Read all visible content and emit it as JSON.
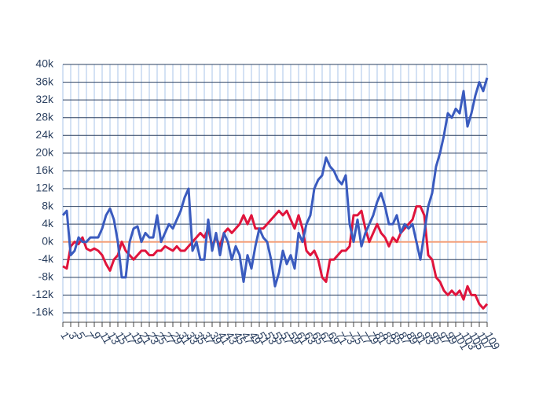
{
  "chart_data": {
    "type": "line",
    "x": [
      1,
      2,
      3,
      4,
      5,
      6,
      7,
      8,
      9,
      10,
      11,
      12,
      13,
      14,
      15,
      16,
      17,
      18,
      19,
      20,
      21,
      22,
      23,
      24,
      25,
      26,
      27,
      28,
      29,
      30,
      31,
      32,
      33,
      34,
      35,
      36,
      37,
      38,
      39,
      40,
      41,
      42,
      43,
      44,
      45,
      46,
      47,
      48,
      49,
      50,
      51,
      52,
      53,
      54,
      55,
      56,
      57,
      58,
      59,
      60,
      61,
      62,
      63,
      64,
      65,
      66,
      67,
      68,
      69,
      70,
      71,
      72,
      73,
      74,
      75,
      76,
      77,
      78,
      79,
      80,
      81,
      82,
      83,
      84,
      85,
      86,
      87,
      88,
      89,
      90,
      91,
      92,
      93,
      94,
      95,
      96,
      97,
      98,
      99,
      100,
      101,
      102,
      103,
      104,
      105,
      106,
      107,
      108,
      109
    ],
    "series": [
      {
        "color": "#e0143c",
        "values": [
          -5.5,
          -6,
          -1,
          0,
          -0.5,
          1,
          -1.5,
          -2,
          -1.5,
          -2,
          -3,
          -5,
          -6.5,
          -4,
          -3,
          0,
          -2,
          -3,
          -4,
          -3,
          -2,
          -2,
          -3,
          -3,
          -2,
          -2,
          -1,
          -1.5,
          -2,
          -1,
          -2,
          -2,
          -1,
          0,
          1,
          2,
          1,
          3,
          -1,
          1,
          -1,
          2,
          3,
          2,
          3,
          4,
          6,
          4,
          6,
          3,
          3,
          3,
          4,
          5,
          6,
          7,
          6,
          7,
          5,
          3,
          6,
          3,
          -2,
          -3,
          -2,
          -4,
          -8,
          -9,
          -4,
          -4,
          -3,
          -2,
          -2,
          -1,
          6,
          6,
          7,
          3,
          0,
          2,
          4,
          2,
          1,
          -1,
          1,
          0,
          2,
          3,
          4,
          5,
          8,
          8,
          6,
          -3,
          -4,
          -8,
          -9,
          -11,
          -12,
          -11,
          -12,
          -11,
          -13,
          -10,
          -12,
          -12,
          -14,
          -15,
          -14
        ]
      },
      {
        "color": "#3a5bbf",
        "values": [
          6,
          7,
          -3,
          -2,
          1,
          0,
          0,
          1,
          1,
          1,
          3,
          6,
          7.5,
          5,
          0,
          -8,
          -8,
          0,
          3,
          3.5,
          0,
          2,
          1,
          1,
          6,
          0,
          2,
          4,
          3,
          5,
          7,
          10,
          12,
          -2,
          0,
          -4,
          -4,
          5,
          -2,
          2,
          -3,
          2,
          0,
          -4,
          -1,
          -3,
          -9,
          -3,
          -6,
          -1,
          3,
          1,
          0,
          -4,
          -10,
          -7,
          -2,
          -5,
          -3,
          -6,
          2,
          0,
          4,
          6,
          12,
          14,
          15,
          19,
          17,
          16,
          14,
          13,
          15,
          4,
          0,
          5,
          -1,
          2,
          4,
          6,
          9,
          11,
          8,
          4,
          4,
          6,
          2,
          4,
          3,
          4,
          0,
          -4,
          2,
          8,
          11,
          17,
          20,
          24,
          29,
          28,
          30,
          29,
          34,
          26,
          29,
          33,
          36,
          34,
          37
        ]
      }
    ],
    "xlim": [
      1,
      109
    ],
    "xticks": [
      1,
      3,
      5,
      7,
      9,
      11,
      13,
      15,
      17,
      19,
      21,
      23,
      25,
      27,
      29,
      31,
      33,
      35,
      37,
      39,
      41,
      43,
      45,
      47,
      49,
      51,
      53,
      55,
      57,
      59,
      61,
      63,
      65,
      67,
      69,
      71,
      73,
      75,
      77,
      79,
      81,
      83,
      85,
      87,
      89,
      91,
      93,
      95,
      97,
      99,
      101,
      103,
      105,
      107,
      109
    ],
    "ylim": [
      -16,
      40
    ],
    "yticks": [
      {
        "value": -16,
        "label": "-16k"
      },
      {
        "value": -12,
        "label": "-12k"
      },
      {
        "value": -8,
        "label": "-8k"
      },
      {
        "value": -4,
        "label": "-4k"
      },
      {
        "value": 0,
        "label": "0k"
      },
      {
        "value": 4,
        "label": "4k"
      },
      {
        "value": 8,
        "label": "8k"
      },
      {
        "value": 12,
        "label": "12k"
      },
      {
        "value": 16,
        "label": "16k"
      },
      {
        "value": 20,
        "label": "20k"
      },
      {
        "value": 24,
        "label": "24k"
      },
      {
        "value": 28,
        "label": "28k"
      },
      {
        "value": 32,
        "label": "32k"
      },
      {
        "value": 36,
        "label": "36k"
      },
      {
        "value": 40,
        "label": "40k"
      }
    ],
    "grid": true,
    "zero_line_color": "#f4a07a"
  }
}
